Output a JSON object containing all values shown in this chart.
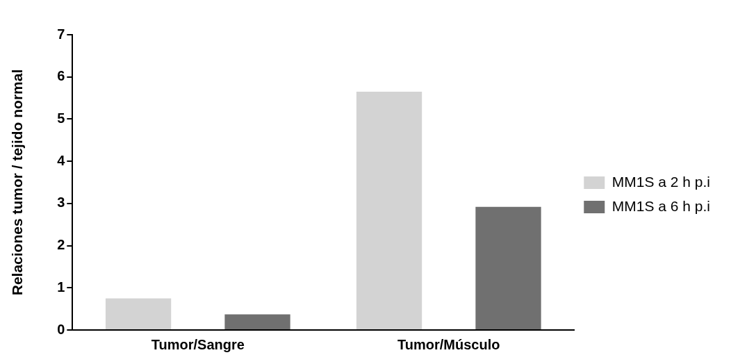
{
  "chart_data": {
    "type": "bar",
    "ylabel": "Relaciones tumor / tejido normal",
    "categories": [
      "Tumor/Sangre",
      "Tumor/Músculo"
    ],
    "series": [
      {
        "name": "MM1S a 2 h p.i",
        "color": "#d3d3d3",
        "values": [
          0.75,
          5.65
        ]
      },
      {
        "name": "MM1S a 6 h p.i",
        "color": "#707070",
        "values": [
          0.37,
          2.92
        ]
      }
    ],
    "ylim": [
      0,
      7
    ],
    "yticks": [
      0,
      1,
      2,
      3,
      4,
      5,
      6,
      7
    ],
    "grid": false,
    "legend": "right"
  }
}
